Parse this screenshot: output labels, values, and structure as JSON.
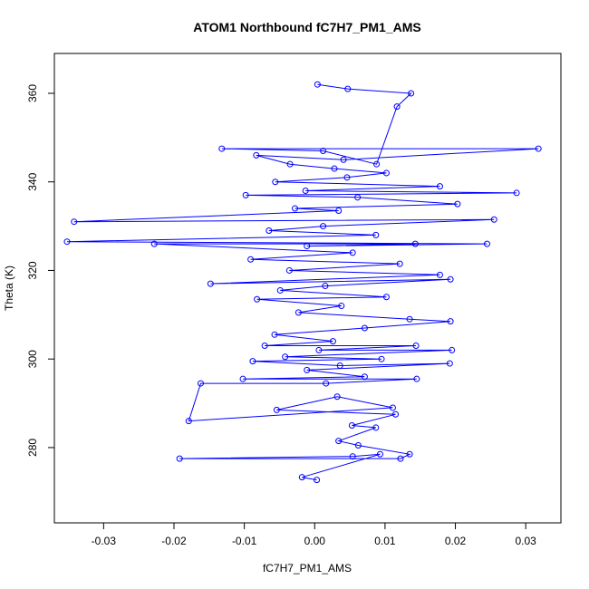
{
  "chart_data": {
    "type": "line",
    "title": "ATOM1 Northbound fC7H7_PM1_AMS",
    "xlabel": "fC7H7_PM1_AMS",
    "ylabel": "Theta (K)",
    "xlim": [
      -0.037,
      0.035
    ],
    "ylim": [
      263,
      369
    ],
    "x_ticks": [
      -0.03,
      -0.02,
      -0.01,
      0.0,
      0.01,
      0.02,
      0.03
    ],
    "x_tick_labels": [
      "-0.03",
      "-0.02",
      "-0.01",
      "0.00",
      "0.01",
      "0.02",
      "0.03"
    ],
    "y_ticks": [
      280,
      300,
      320,
      340,
      360
    ],
    "y_tick_labels": [
      "280",
      "300",
      "320",
      "340",
      "360"
    ],
    "grid": false,
    "color": "#0000ff",
    "series": [
      {
        "marker": "open-circle",
        "points": [
          [
            0.0004,
            362
          ],
          [
            0.0047,
            361
          ],
          [
            0.0137,
            360
          ],
          [
            0.0117,
            357
          ],
          [
            0.0088,
            344
          ],
          [
            0.0012,
            347
          ],
          [
            -0.0132,
            347.5
          ],
          [
            0.0318,
            347.5
          ],
          [
            0.0041,
            345
          ],
          [
            -0.0083,
            346
          ],
          [
            -0.0035,
            344
          ],
          [
            0.0028,
            343
          ],
          [
            0.0102,
            342
          ],
          [
            0.0046,
            341
          ],
          [
            -0.0056,
            340
          ],
          [
            0.0178,
            339
          ],
          [
            -0.0013,
            338
          ],
          [
            0.0287,
            337.5
          ],
          [
            -0.0098,
            337
          ],
          [
            0.0061,
            336.5
          ],
          [
            0.0203,
            335
          ],
          [
            -0.0028,
            334
          ],
          [
            0.0034,
            333.5
          ],
          [
            -0.0342,
            331
          ],
          [
            0.0255,
            331.5
          ],
          [
            0.0012,
            330
          ],
          [
            -0.0065,
            329
          ],
          [
            0.0087,
            328
          ],
          [
            -0.0352,
            326.5
          ],
          [
            0.0245,
            326
          ],
          [
            -0.0011,
            325.5
          ],
          [
            0.0143,
            326
          ],
          [
            -0.0228,
            326
          ],
          [
            0.0054,
            324
          ],
          [
            -0.0091,
            322.5
          ],
          [
            0.0121,
            321.5
          ],
          [
            -0.0036,
            320
          ],
          [
            0.0178,
            319
          ],
          [
            -0.0148,
            317
          ],
          [
            0.0193,
            318
          ],
          [
            0.0015,
            316.5
          ],
          [
            -0.0049,
            315.5
          ],
          [
            0.0102,
            314
          ],
          [
            -0.0082,
            313.5
          ],
          [
            0.0038,
            312
          ],
          [
            -0.0023,
            310.5
          ],
          [
            0.0135,
            309
          ],
          [
            0.0193,
            308.5
          ],
          [
            0.0071,
            307
          ],
          [
            -0.0057,
            305.5
          ],
          [
            0.0026,
            304
          ],
          [
            -0.0071,
            303
          ],
          [
            0.0144,
            303
          ],
          [
            0.0006,
            302
          ],
          [
            0.0195,
            302
          ],
          [
            -0.0042,
            300.5
          ],
          [
            0.0095,
            300
          ],
          [
            -0.0088,
            299.5
          ],
          [
            0.0036,
            298.5
          ],
          [
            0.0192,
            299
          ],
          [
            -0.0011,
            297.5
          ],
          [
            0.0071,
            296
          ],
          [
            -0.0102,
            295.5
          ],
          [
            0.0145,
            295.5
          ],
          [
            0.0016,
            294.5
          ],
          [
            -0.0162,
            294.5
          ],
          [
            -0.0179,
            286
          ],
          [
            0.0111,
            289
          ],
          [
            0.0032,
            291.5
          ],
          [
            -0.0054,
            288.5
          ],
          [
            0.0115,
            287.5
          ],
          [
            0.0053,
            285
          ],
          [
            0.0087,
            284.5
          ],
          [
            0.0034,
            281.5
          ],
          [
            0.0062,
            280.5
          ],
          [
            0.0135,
            278.5
          ],
          [
            0.0122,
            277.5
          ],
          [
            -0.0192,
            277.5
          ],
          [
            0.0054,
            278
          ],
          [
            0.0093,
            278.5
          ],
          [
            -0.0018,
            273.3
          ],
          [
            0.0003,
            272.7
          ]
        ]
      }
    ]
  }
}
